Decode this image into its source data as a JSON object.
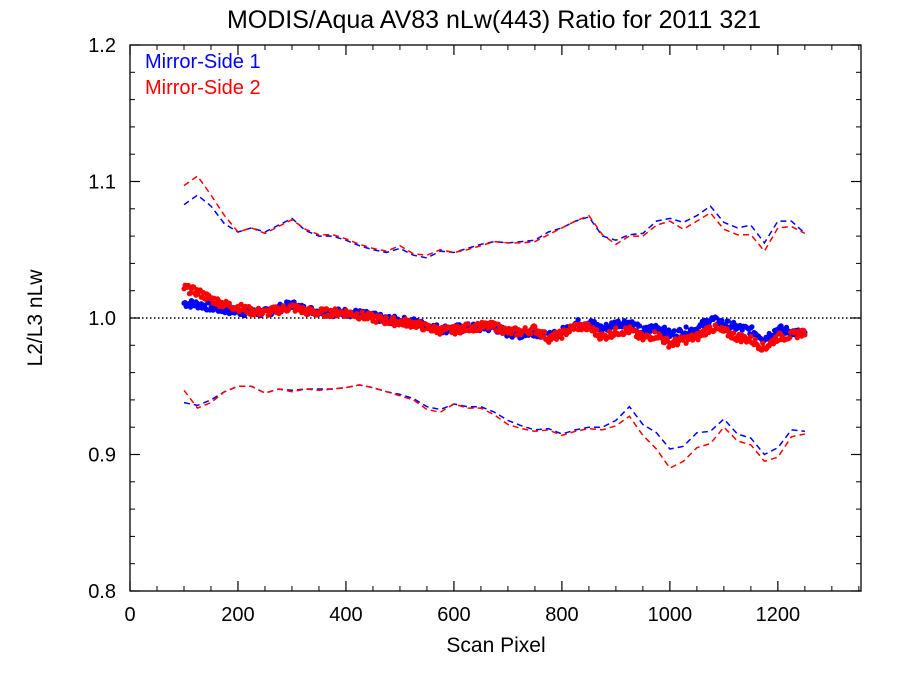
{
  "chart_data": {
    "type": "scatter",
    "title": "MODIS/Aqua AV83 nLw(443) Ratio for 2011 321",
    "xlabel": "Scan Pixel",
    "ylabel": "L2/L3 nLw",
    "xlim": [
      0,
      1354
    ],
    "ylim": [
      0.8,
      1.2
    ],
    "xticks": [
      0,
      200,
      400,
      600,
      800,
      1000,
      1200
    ],
    "xtick_labels": [
      "0",
      "200",
      "400",
      "600",
      "800",
      "1000",
      "1200"
    ],
    "yticks": [
      0.8,
      0.9,
      1.0,
      1.1,
      1.2
    ],
    "ytick_labels": [
      "0.8",
      "0.9",
      "1.0",
      "1.1",
      "1.2"
    ],
    "reference_line": 1.0,
    "legend_position": "top-left",
    "series": [
      {
        "name": "Mirror-Side 1",
        "color": "#0000ff",
        "x": [
          100,
          125,
          150,
          175,
          200,
          225,
          250,
          275,
          300,
          325,
          350,
          375,
          400,
          425,
          450,
          475,
          500,
          525,
          550,
          575,
          600,
          625,
          650,
          675,
          700,
          725,
          750,
          775,
          800,
          825,
          850,
          875,
          900,
          925,
          950,
          975,
          1000,
          1025,
          1050,
          1075,
          1100,
          1125,
          1150,
          1175,
          1200,
          1225,
          1250
        ],
        "y": [
          1.011,
          1.01,
          1.008,
          1.006,
          1.005,
          1.004,
          1.004,
          1.007,
          1.01,
          1.006,
          1.005,
          1.004,
          1.004,
          1.003,
          1.001,
          0.999,
          0.998,
          0.997,
          0.994,
          0.992,
          0.992,
          0.993,
          0.993,
          0.993,
          0.989,
          0.988,
          0.99,
          0.986,
          0.99,
          0.996,
          0.997,
          0.992,
          0.996,
          0.997,
          0.99,
          0.994,
          0.988,
          0.99,
          0.992,
          0.999,
          0.996,
          0.993,
          0.991,
          0.985,
          0.992,
          0.99,
          0.988
        ],
        "upper": [
          1.083,
          1.09,
          1.082,
          1.069,
          1.063,
          1.066,
          1.063,
          1.068,
          1.073,
          1.064,
          1.06,
          1.06,
          1.057,
          1.053,
          1.05,
          1.048,
          1.051,
          1.046,
          1.044,
          1.049,
          1.048,
          1.051,
          1.054,
          1.056,
          1.055,
          1.056,
          1.057,
          1.063,
          1.066,
          1.071,
          1.074,
          1.06,
          1.057,
          1.061,
          1.062,
          1.071,
          1.073,
          1.07,
          1.075,
          1.082,
          1.07,
          1.066,
          1.068,
          1.055,
          1.071,
          1.071,
          1.062
        ],
        "lower": [
          0.938,
          0.936,
          0.94,
          0.946,
          0.95,
          0.95,
          0.945,
          0.948,
          0.947,
          0.948,
          0.948,
          0.948,
          0.949,
          0.951,
          0.949,
          0.946,
          0.944,
          0.941,
          0.935,
          0.933,
          0.937,
          0.935,
          0.935,
          0.931,
          0.925,
          0.921,
          0.918,
          0.919,
          0.915,
          0.918,
          0.92,
          0.92,
          0.925,
          0.935,
          0.922,
          0.916,
          0.904,
          0.906,
          0.916,
          0.917,
          0.926,
          0.915,
          0.912,
          0.9,
          0.905,
          0.918,
          0.917
        ]
      },
      {
        "name": "Mirror-Side 2",
        "color": "#ff0000",
        "x": [
          100,
          125,
          150,
          175,
          200,
          225,
          250,
          275,
          300,
          325,
          350,
          375,
          400,
          425,
          450,
          475,
          500,
          525,
          550,
          575,
          600,
          625,
          650,
          675,
          700,
          725,
          750,
          775,
          800,
          825,
          850,
          875,
          900,
          925,
          950,
          975,
          1000,
          1025,
          1050,
          1075,
          1100,
          1125,
          1150,
          1175,
          1200,
          1225,
          1250
        ],
        "y": [
          1.022,
          1.019,
          1.014,
          1.01,
          1.008,
          1.005,
          1.004,
          1.006,
          1.008,
          1.005,
          1.004,
          1.004,
          1.004,
          1.002,
          1.0,
          0.998,
          0.997,
          0.996,
          0.993,
          0.991,
          0.991,
          0.993,
          0.994,
          0.994,
          0.99,
          0.99,
          0.992,
          0.985,
          0.988,
          0.994,
          0.993,
          0.986,
          0.99,
          0.991,
          0.985,
          0.988,
          0.981,
          0.984,
          0.986,
          0.993,
          0.99,
          0.986,
          0.984,
          0.978,
          0.986,
          0.987,
          0.99
        ],
        "upper": [
          1.097,
          1.104,
          1.09,
          1.075,
          1.063,
          1.066,
          1.062,
          1.067,
          1.072,
          1.065,
          1.061,
          1.061,
          1.058,
          1.054,
          1.051,
          1.049,
          1.053,
          1.047,
          1.046,
          1.05,
          1.048,
          1.05,
          1.053,
          1.056,
          1.055,
          1.055,
          1.056,
          1.061,
          1.066,
          1.071,
          1.075,
          1.061,
          1.054,
          1.06,
          1.06,
          1.068,
          1.071,
          1.065,
          1.071,
          1.077,
          1.065,
          1.061,
          1.061,
          1.049,
          1.066,
          1.067,
          1.062
        ],
        "lower": [
          0.947,
          0.934,
          0.938,
          0.946,
          0.95,
          0.95,
          0.945,
          0.948,
          0.946,
          0.948,
          0.947,
          0.948,
          0.949,
          0.951,
          0.949,
          0.946,
          0.943,
          0.94,
          0.933,
          0.931,
          0.937,
          0.934,
          0.934,
          0.929,
          0.922,
          0.919,
          0.917,
          0.918,
          0.914,
          0.917,
          0.919,
          0.918,
          0.921,
          0.928,
          0.914,
          0.904,
          0.89,
          0.895,
          0.905,
          0.908,
          0.92,
          0.91,
          0.907,
          0.895,
          0.898,
          0.913,
          0.915
        ]
      }
    ]
  }
}
